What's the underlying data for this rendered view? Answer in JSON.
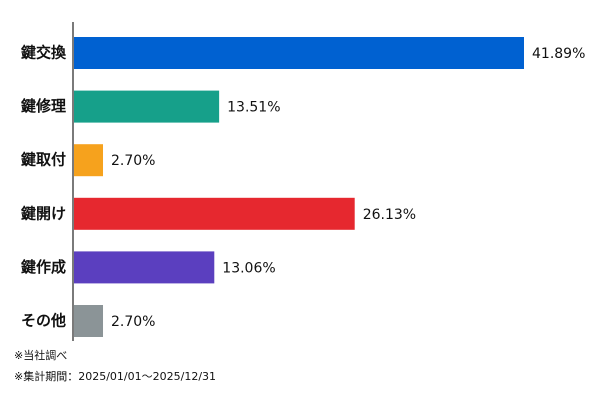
{
  "chart_data": {
    "type": "bar",
    "orientation": "horizontal",
    "categories": [
      "鍵交換",
      "鍵修理",
      "鍵取付",
      "鍵開け",
      "鍵作成",
      "その他"
    ],
    "values": [
      41.89,
      13.51,
      2.7,
      26.13,
      13.06,
      2.7
    ],
    "value_labels": [
      "41.89%",
      "13.51%",
      "2.70%",
      "26.13%",
      "13.06%",
      "2.70%"
    ],
    "colors": [
      "#0061d1",
      "#16a08a",
      "#f6a21d",
      "#e6282f",
      "#5b3fbf",
      "#8b9497"
    ],
    "notes": [
      "※当社調べ",
      "※集計期間：2025/01/01～2025/12/31"
    ]
  }
}
